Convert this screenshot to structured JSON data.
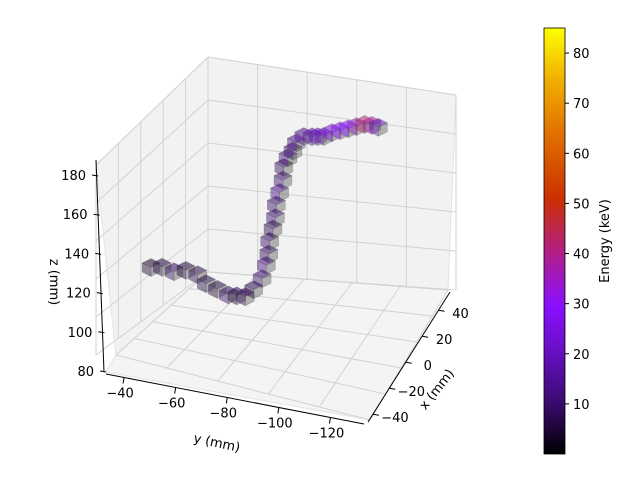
{
  "chart_data": {
    "type": "scatter",
    "subtype": "3d-voxel",
    "xlabel": "x (mm)",
    "ylabel": "y (mm)",
    "zlabel": "z (mm)",
    "xlim": [
      -50,
      50
    ],
    "ylim": [
      -30,
      -130
    ],
    "zlim": [
      80,
      190
    ],
    "x_ticks": [
      "−40",
      "−20",
      "0",
      "20",
      "40"
    ],
    "y_ticks": [
      "−40",
      "−60",
      "−80",
      "−100",
      "−120"
    ],
    "z_ticks": [
      "80",
      "100",
      "120",
      "140",
      "160",
      "180"
    ],
    "grid": true,
    "colorbar": {
      "label": "Energy (keV)",
      "colormap": "gnuplot",
      "range": [
        0,
        85
      ],
      "ticks": [
        "10",
        "20",
        "30",
        "40",
        "50",
        "60",
        "70",
        "80"
      ]
    },
    "colors": {
      "voxel_low": "#2a0b4a",
      "voxel_mid": "#7a23c9",
      "voxel_high": "#c43a10",
      "pane": "#f2f2f2"
    },
    "points": [
      {
        "x": -45,
        "y": -42,
        "z": 126,
        "e": 4
      },
      {
        "x": -44,
        "y": -46,
        "z": 127,
        "e": 6
      },
      {
        "x": -42,
        "y": -50,
        "z": 125,
        "e": 8
      },
      {
        "x": -40,
        "y": -54,
        "z": 126,
        "e": 5
      },
      {
        "x": -38,
        "y": -58,
        "z": 124,
        "e": 7
      },
      {
        "x": -34,
        "y": -60,
        "z": 118,
        "e": 6
      },
      {
        "x": -30,
        "y": -63,
        "z": 114,
        "e": 5
      },
      {
        "x": -26,
        "y": -66,
        "z": 110,
        "e": 9
      },
      {
        "x": -22,
        "y": -68,
        "z": 108,
        "e": 6
      },
      {
        "x": -18,
        "y": -70,
        "z": 106,
        "e": 8
      },
      {
        "x": -14,
        "y": -72,
        "z": 108,
        "e": 7
      },
      {
        "x": -10,
        "y": -74,
        "z": 112,
        "e": 10
      },
      {
        "x": -8,
        "y": -75,
        "z": 118,
        "e": 12
      },
      {
        "x": -8,
        "y": -76,
        "z": 124,
        "e": 8
      },
      {
        "x": -7,
        "y": -76,
        "z": 130,
        "e": 9
      },
      {
        "x": -6,
        "y": -77,
        "z": 136,
        "e": 7
      },
      {
        "x": -6,
        "y": -78,
        "z": 142,
        "e": 11
      },
      {
        "x": -5,
        "y": -78,
        "z": 148,
        "e": 9
      },
      {
        "x": -4,
        "y": -79,
        "z": 154,
        "e": 14
      },
      {
        "x": -3,
        "y": -80,
        "z": 160,
        "e": 10
      },
      {
        "x": -2,
        "y": -80,
        "z": 166,
        "e": 8
      },
      {
        "x": 0,
        "y": -81,
        "z": 170,
        "e": 12
      },
      {
        "x": 3,
        "y": -82,
        "z": 172,
        "e": 9
      },
      {
        "x": 7,
        "y": -82,
        "z": 174,
        "e": 13
      },
      {
        "x": 10,
        "y": -84,
        "z": 176,
        "e": 15
      },
      {
        "x": 14,
        "y": -86,
        "z": 174,
        "e": 18
      },
      {
        "x": 18,
        "y": -87,
        "z": 172,
        "e": 20
      },
      {
        "x": 22,
        "y": -88,
        "z": 170,
        "e": 22
      },
      {
        "x": 26,
        "y": -90,
        "z": 170,
        "e": 25
      },
      {
        "x": 30,
        "y": -92,
        "z": 169,
        "e": 28
      },
      {
        "x": 34,
        "y": -94,
        "z": 168,
        "e": 30
      },
      {
        "x": 38,
        "y": -96,
        "z": 167,
        "e": 34
      },
      {
        "x": 42,
        "y": -98,
        "z": 166,
        "e": 42
      },
      {
        "x": 45,
        "y": -100,
        "z": 164,
        "e": 38
      },
      {
        "x": 47,
        "y": -102,
        "z": 162,
        "e": 20
      }
    ]
  }
}
